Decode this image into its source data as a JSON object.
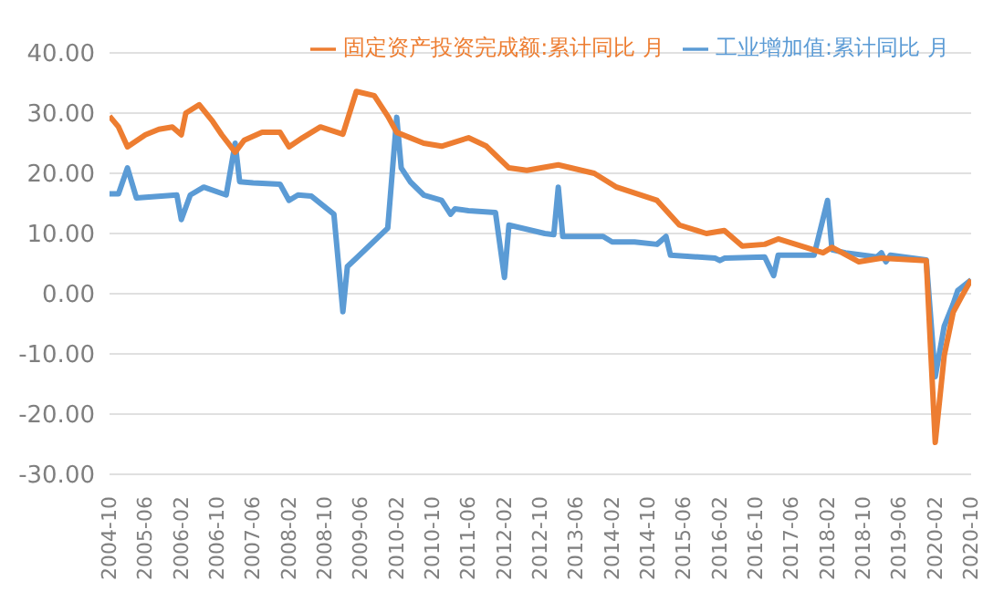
{
  "chart_data": {
    "type": "line",
    "legend": "top",
    "grid": "y",
    "marker": "none",
    "line_style": "solid",
    "xlim": [
      "2004-10",
      "2020-10"
    ],
    "xticks": [
      "2004-10",
      "2005-06",
      "2006-02",
      "2006-10",
      "2007-06",
      "2008-02",
      "2008-10",
      "2009-06",
      "2010-02",
      "2010-10",
      "2011-06",
      "2012-02",
      "2012-10",
      "2013-06",
      "2014-02",
      "2014-10",
      "2015-06",
      "2016-02",
      "2016-10",
      "2017-06",
      "2018-02",
      "2018-10",
      "2019-06",
      "2020-02",
      "2020-10"
    ],
    "ylim": [
      -30,
      40
    ],
    "yticks": [
      {
        "value": -30,
        "label": "-30.00"
      },
      {
        "value": -20,
        "label": "-20.00"
      },
      {
        "value": -10,
        "label": "-10.00"
      },
      {
        "value": 0,
        "label": "0.00"
      },
      {
        "value": 10,
        "label": "10.00"
      },
      {
        "value": 20,
        "label": "20.00"
      },
      {
        "value": 30,
        "label": "30.00"
      },
      {
        "value": 40,
        "label": "40.00"
      }
    ],
    "series": [
      {
        "name": "工业增加值:累计同比 月",
        "color": "#5b9bd5",
        "x": [
          "2004-10",
          "2004-12",
          "2005-02",
          "2005-04",
          "2006-01",
          "2006-02",
          "2006-04",
          "2006-07",
          "2006-12",
          "2007-02",
          "2007-03",
          "2007-06",
          "2007-12",
          "2008-02",
          "2008-04",
          "2008-07",
          "2008-12",
          "2009-02",
          "2009-03",
          "2009-05",
          "2009-12",
          "2010-02",
          "2010-03",
          "2010-05",
          "2010-08",
          "2010-12",
          "2011-02",
          "2011-03",
          "2011-06",
          "2011-12",
          "2012-02",
          "2012-03",
          "2012-11",
          "2013-01",
          "2013-02",
          "2013-03",
          "2013-12",
          "2014-02",
          "2014-07",
          "2014-12",
          "2015-02",
          "2015-03",
          "2016-01",
          "2016-02",
          "2016-03",
          "2016-12",
          "2017-02",
          "2017-03",
          "2017-11",
          "2018-02",
          "2018-03",
          "2018-06",
          "2019-01",
          "2019-02",
          "2019-03",
          "2019-04",
          "2019-12",
          "2020-02",
          "2020-04",
          "2020-06",
          "2020-07",
          "2020-10"
        ],
        "values": [
          16.6,
          16.6,
          20.9,
          15.9,
          16.4,
          12.3,
          16.4,
          17.7,
          16.4,
          25,
          18.6,
          18.4,
          18.2,
          15.5,
          16.4,
          16.2,
          13.2,
          -3,
          4.5,
          5.9,
          10.9,
          29.3,
          20.9,
          18.6,
          16.4,
          15.5,
          13.2,
          14.1,
          13.8,
          13.5,
          2.7,
          11.4,
          10,
          9.8,
          17.7,
          9.5,
          9.5,
          8.6,
          8.6,
          8.2,
          9.5,
          6.4,
          5.9,
          5.5,
          5.9,
          6.1,
          3,
          6.4,
          6.4,
          15.5,
          7.3,
          6.8,
          6.1,
          6.8,
          5.3,
          6.4,
          5.6,
          -13.8,
          -5.4,
          -1.7,
          0.5,
          2.3
        ]
      },
      {
        "name": "固定资产投资完成额:累计同比 月",
        "color": "#ed7d31",
        "x": [
          "2004-10",
          "2004-12",
          "2005-02",
          "2005-06",
          "2005-09",
          "2005-12",
          "2006-02",
          "2006-03",
          "2006-06",
          "2006-09",
          "2006-11",
          "2007-02",
          "2007-04",
          "2007-08",
          "2007-12",
          "2008-02",
          "2008-05",
          "2008-09",
          "2009-02",
          "2009-05",
          "2009-09",
          "2009-12",
          "2010-02",
          "2010-08",
          "2010-12",
          "2011-06",
          "2011-10",
          "2012-03",
          "2012-07",
          "2013-02",
          "2013-10",
          "2014-03",
          "2014-12",
          "2015-05",
          "2015-11",
          "2016-03",
          "2016-07",
          "2016-12",
          "2017-03",
          "2018-01",
          "2018-03",
          "2018-09",
          "2019-02",
          "2019-12",
          "2020-02",
          "2020-04",
          "2020-06",
          "2020-08",
          "2020-10"
        ],
        "values": [
          29.5,
          27.7,
          24.4,
          26.4,
          27.3,
          27.7,
          26.4,
          30,
          31.4,
          28.6,
          26.4,
          23.5,
          25.5,
          26.8,
          26.8,
          24.4,
          25.9,
          27.7,
          26.5,
          33.6,
          32.9,
          29.5,
          26.8,
          25,
          24.5,
          25.9,
          24.5,
          20.9,
          20.5,
          21.4,
          20,
          17.7,
          15.5,
          11.4,
          10,
          10.5,
          7.9,
          8.2,
          9.1,
          6.8,
          7.7,
          5.3,
          5.9,
          5.5,
          -24.7,
          -10.3,
          -3.1,
          -0.3,
          2.3
        ]
      }
    ]
  }
}
